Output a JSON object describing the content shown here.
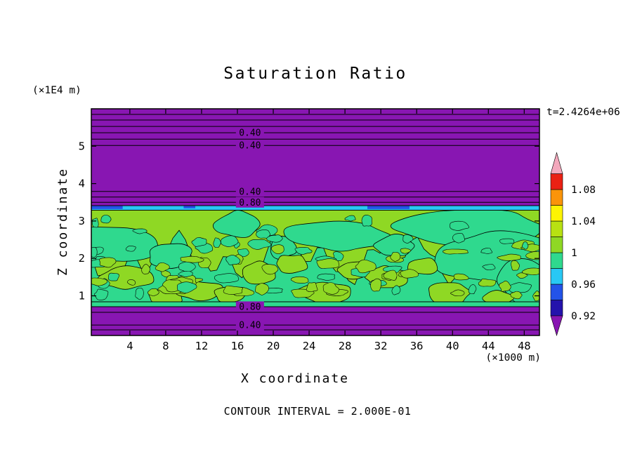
{
  "chart_data": {
    "type": "heatmap",
    "title": "Saturation Ratio",
    "xlabel": "X coordinate",
    "ylabel": "Z coordinate",
    "x_unit_label": "(×1000 m)",
    "y_unit_label": "(×1E4 m)",
    "time_label": "t=2.4264e+06",
    "contour_note": "CONTOUR INTERVAL = 2.000E-01",
    "contour_interval": 0.2,
    "xlim": [
      -0.3,
      49.7
    ],
    "zlim": [
      -0.06,
      6.0
    ],
    "x_ticks": [
      4,
      8,
      12,
      16,
      20,
      24,
      28,
      32,
      36,
      40,
      44,
      48
    ],
    "z_ticks": [
      1,
      2,
      3,
      4,
      5
    ],
    "contour_label_x": 17.4,
    "contour_lines": [
      {
        "z": 5.85
      },
      {
        "z": 5.7
      },
      {
        "z": 5.53
      },
      {
        "z": 5.36,
        "label": "0.40"
      },
      {
        "z": 5.19
      },
      {
        "z": 5.02,
        "label": "0.40"
      },
      {
        "z": 3.79,
        "label": "0.40"
      },
      {
        "z": 3.64
      },
      {
        "z": 3.5,
        "label": "0.80"
      },
      {
        "z": 3.41
      },
      {
        "z": 3.29,
        "w": 0.7
      },
      {
        "z": 0.84,
        "w": 0.7
      },
      {
        "z": 0.71,
        "label": "0.80"
      },
      {
        "z": 0.56
      },
      {
        "z": 0.22,
        "label": "0.40"
      },
      {
        "z": 0.09
      }
    ],
    "field": {
      "background_color": "#8816b2",
      "teal_color": "#2fd98e",
      "blue_color": "#2353e8",
      "bands": {
        "green_band": {
          "z0": 0.84,
          "z1": 3.29,
          "color": "#8fd824"
        },
        "cyan_strip": {
          "z0": 3.29,
          "z1": 3.41,
          "color": "#28c8f4"
        },
        "teal_strip": {
          "z0": 0.71,
          "z1": 0.84,
          "color": "#2fd98e"
        },
        "teal_base": {
          "z0": 0.84,
          "z1_mean": 2.0,
          "z1_amp": 0.62,
          "color": "#2fd98e"
        }
      },
      "blue_patches": [
        {
          "x0": -0.3,
          "x1": 3.2,
          "z0": 3.32,
          "z1": 3.41
        },
        {
          "x0": 10.0,
          "x1": 11.3,
          "z0": 3.34,
          "z1": 3.41
        },
        {
          "x0": 30.5,
          "x1": 35.2,
          "z0": 3.32,
          "z1": 3.41
        }
      ],
      "teal_regions": [
        {
          "cx": 1.5,
          "cz": 2.35,
          "rx": 5.5,
          "rz": 0.5
        },
        {
          "cx": 8.5,
          "cz": 2.05,
          "rx": 2.6,
          "rz": 0.35
        },
        {
          "cx": 16.0,
          "cz": 2.9,
          "rx": 2.4,
          "rz": 0.38
        },
        {
          "cx": 21.0,
          "cz": 2.3,
          "rx": 1.6,
          "rz": 0.3
        },
        {
          "cx": 27.5,
          "cz": 2.6,
          "rx": 6.0,
          "rz": 0.42
        },
        {
          "cx": 33.5,
          "cz": 2.35,
          "rx": 2.2,
          "rz": 0.3
        },
        {
          "cx": 42.5,
          "cz": 2.85,
          "rx": 8.5,
          "rz": 0.5
        },
        {
          "cx": 44.5,
          "cz": 2.0,
          "rx": 6.5,
          "rz": 0.75
        },
        {
          "cx": 48.5,
          "cz": 1.35,
          "rx": 3.5,
          "rz": 0.6
        }
      ],
      "green_islands": [
        {
          "cx": 3.5,
          "cz": 1.5,
          "rx": 3.0,
          "rz": 0.3
        },
        {
          "cx": 8.0,
          "cz": 0.95,
          "rx": 2.0,
          "rz": 0.2
        },
        {
          "cx": 11.5,
          "cz": 1.15,
          "rx": 2.6,
          "rz": 0.28
        },
        {
          "cx": 15.0,
          "cz": 1.05,
          "rx": 1.8,
          "rz": 0.2
        },
        {
          "cx": 18.5,
          "cz": 1.6,
          "rx": 2.1,
          "rz": 0.3
        },
        {
          "cx": 22.0,
          "cz": 1.85,
          "rx": 2.0,
          "rz": 0.25
        },
        {
          "cx": 25.5,
          "cz": 1.1,
          "rx": 3.0,
          "rz": 0.3
        },
        {
          "cx": 29.0,
          "cz": 1.7,
          "rx": 1.8,
          "rz": 0.24
        },
        {
          "cx": 32.5,
          "cz": 1.5,
          "rx": 2.4,
          "rz": 0.28
        },
        {
          "cx": 36.5,
          "cz": 1.8,
          "rx": 1.8,
          "rz": 0.22
        },
        {
          "cx": 39.5,
          "cz": 1.1,
          "rx": 2.6,
          "rz": 0.3
        },
        {
          "cx": 45.0,
          "cz": 0.95,
          "rx": 1.7,
          "rz": 0.18
        }
      ],
      "speckles": {
        "seed": 11,
        "count_lower": 80,
        "z_lower": [
          0.95,
          2.4
        ],
        "count_upper": 18,
        "z_upper": [
          2.25,
          3.15
        ]
      }
    },
    "colorbar": {
      "value_range": [
        0.92,
        1.1
      ],
      "arrow_top_color": "#f3a8bc",
      "arrow_bottom_color": "#8816b2",
      "labels": [
        {
          "text": "1.08",
          "value": 1.08
        },
        {
          "text": "1.04",
          "value": 1.04
        },
        {
          "text": "1",
          "value": 1.0
        },
        {
          "text": "0.96",
          "value": 0.96
        },
        {
          "text": "0.92",
          "value": 0.92
        }
      ],
      "segments": [
        {
          "v0": 0.92,
          "v1": 0.94,
          "color": "#2413ac"
        },
        {
          "v0": 0.94,
          "v1": 0.96,
          "color": "#2353e8"
        },
        {
          "v0": 0.96,
          "v1": 0.98,
          "color": "#28c8f4"
        },
        {
          "v0": 0.98,
          "v1": 1.0,
          "color": "#2fd98e"
        },
        {
          "v0": 1.0,
          "v1": 1.02,
          "color": "#8fd824"
        },
        {
          "v0": 1.02,
          "v1": 1.04,
          "color": "#b8e112"
        },
        {
          "v0": 1.04,
          "v1": 1.06,
          "color": "#fdf403"
        },
        {
          "v0": 1.06,
          "v1": 1.08,
          "color": "#fa940a"
        },
        {
          "v0": 1.08,
          "v1": 1.1,
          "color": "#ea2113"
        }
      ]
    }
  }
}
